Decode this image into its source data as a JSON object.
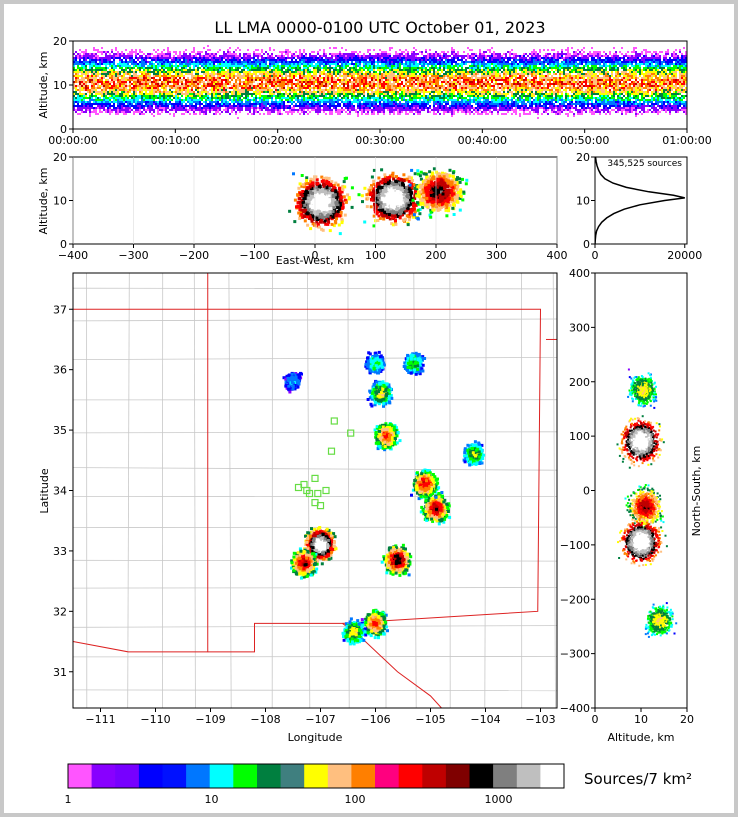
{
  "chart_data": [
    {
      "type": "heatmap",
      "id": "time-height",
      "title": "LL LMA 0000-0100 UTC October 01, 2023",
      "xlabel": "",
      "ylabel": "Altitude, km",
      "x_ticks": [
        "00:00:00",
        "00:10:00",
        "00:20:00",
        "00:30:00",
        "00:40:00",
        "00:50:00",
        "01:00:00"
      ],
      "y_ticks": [
        "0",
        "10",
        "20"
      ],
      "xlim_minutes": [
        0,
        60
      ],
      "ylim": [
        0,
        20
      ],
      "peak_altitude_km": 10.5
    },
    {
      "type": "heatmap",
      "id": "ew-altitude",
      "xlabel": "East-West, km",
      "ylabel": "Altitude, km",
      "x_ticks": [
        "−400",
        "−300",
        "−200",
        "−100",
        "0",
        "100",
        "200",
        "300",
        "400"
      ],
      "y_ticks": [
        "0",
        "10",
        "20"
      ],
      "xlim": [
        -400,
        400
      ],
      "ylim": [
        0,
        20
      ],
      "cores": [
        {
          "x": 10,
          "y": 9.5,
          "level": 1.0
        },
        {
          "x": 130,
          "y": 10.5,
          "level": 1.0
        },
        {
          "x": 205,
          "y": 12,
          "level": 0.75
        }
      ]
    },
    {
      "type": "line",
      "id": "altitude-histogram",
      "annotation": "345,525 sources",
      "x_ticks": [
        "0",
        "20000"
      ],
      "y_ticks": [
        "0",
        "10",
        "20"
      ],
      "xlim": [
        0,
        20500
      ],
      "ylim": [
        0,
        20
      ],
      "points": [
        [
          0,
          0
        ],
        [
          60,
          1
        ],
        [
          150,
          2
        ],
        [
          350,
          3
        ],
        [
          800,
          4
        ],
        [
          1500,
          5
        ],
        [
          2600,
          6
        ],
        [
          4200,
          7
        ],
        [
          6500,
          8
        ],
        [
          10000,
          9
        ],
        [
          15500,
          10
        ],
        [
          20000,
          10.6
        ],
        [
          17500,
          11.2
        ],
        [
          12000,
          12
        ],
        [
          7000,
          13
        ],
        [
          4000,
          14
        ],
        [
          2200,
          15
        ],
        [
          1300,
          16
        ],
        [
          800,
          17
        ],
        [
          450,
          18
        ],
        [
          250,
          19
        ],
        [
          120,
          20
        ]
      ]
    },
    {
      "type": "heatmap",
      "id": "plan-view",
      "xlabel": "Longitude",
      "ylabel": "Latitude",
      "x_ticks": [
        "−111",
        "−110",
        "−109",
        "−108",
        "−107",
        "−106",
        "−105",
        "−104",
        "−103"
      ],
      "y_ticks": [
        "31",
        "32",
        "33",
        "34",
        "35",
        "36",
        "37"
      ],
      "xlim": [
        -111.5,
        -102.7
      ],
      "ylim": [
        30.4,
        37.6
      ],
      "cells": [
        {
          "lon": -107.0,
          "lat": 33.1,
          "level": 1.0
        },
        {
          "lon": -107.3,
          "lat": 32.8,
          "level": 0.7
        },
        {
          "lon": -105.6,
          "lat": 32.85,
          "level": 0.75
        },
        {
          "lon": -104.9,
          "lat": 33.7,
          "level": 0.7
        },
        {
          "lon": -105.1,
          "lat": 34.1,
          "level": 0.65
        },
        {
          "lon": -105.8,
          "lat": 34.9,
          "level": 0.6
        },
        {
          "lon": -106.0,
          "lat": 31.8,
          "level": 0.6
        },
        {
          "lon": -104.2,
          "lat": 34.6,
          "level": 0.4
        },
        {
          "lon": -105.9,
          "lat": 35.6,
          "level": 0.45
        },
        {
          "lon": -105.3,
          "lat": 36.1,
          "level": 0.35
        },
        {
          "lon": -106.0,
          "lat": 36.1,
          "level": 0.3
        },
        {
          "lon": -106.4,
          "lat": 31.65,
          "level": 0.45
        },
        {
          "lon": -107.5,
          "lat": 35.8,
          "level": 0.2
        }
      ],
      "stations": [
        [
          -106.75,
          35.15
        ],
        [
          -106.45,
          34.95
        ],
        [
          -106.8,
          34.65
        ],
        [
          -107.4,
          34.05
        ],
        [
          -107.3,
          34.1
        ],
        [
          -107.1,
          34.2
        ],
        [
          -107.2,
          33.95
        ],
        [
          -107.05,
          33.95
        ],
        [
          -106.9,
          34.0
        ],
        [
          -107.1,
          33.8
        ],
        [
          -107.0,
          33.75
        ],
        [
          -107.25,
          34.0
        ]
      ]
    },
    {
      "type": "heatmap",
      "id": "altitude-ns",
      "xlabel": "Altitude, km",
      "ylabel": "North-South, km",
      "x_ticks": [
        "0",
        "10",
        "20"
      ],
      "y_ticks": [
        "400",
        "300",
        "200",
        "100",
        "0",
        "−100",
        "−200",
        "−300",
        "−400"
      ],
      "xlim": [
        0,
        20
      ],
      "ylim": [
        -400,
        400
      ],
      "cores": [
        {
          "x": 10.5,
          "y": 185,
          "level": 0.45
        },
        {
          "x": 10,
          "y": 90,
          "level": 1.0
        },
        {
          "x": 11,
          "y": -30,
          "level": 0.7
        },
        {
          "x": 10,
          "y": -95,
          "level": 1.0
        },
        {
          "x": 14,
          "y": -240,
          "level": 0.45
        }
      ]
    },
    {
      "type": "colorbar",
      "id": "density-scale",
      "label": "Sources/7 km²",
      "tick_labels": [
        "1",
        "10",
        "100",
        "1000"
      ],
      "colors": [
        "#ff55ff",
        "#8800ff",
        "#7700ff",
        "#0000ff",
        "#0011ff",
        "#0077ff",
        "#00ffff",
        "#00ff00",
        "#007f3f",
        "#3f7f7f",
        "#ffff00",
        "#ffbf7f",
        "#ff7f00",
        "#ff007f",
        "#ff0000",
        "#bf0000",
        "#7f0000",
        "#000000",
        "#7f7f7f",
        "#bfbfbf",
        "#ffffff"
      ]
    }
  ]
}
